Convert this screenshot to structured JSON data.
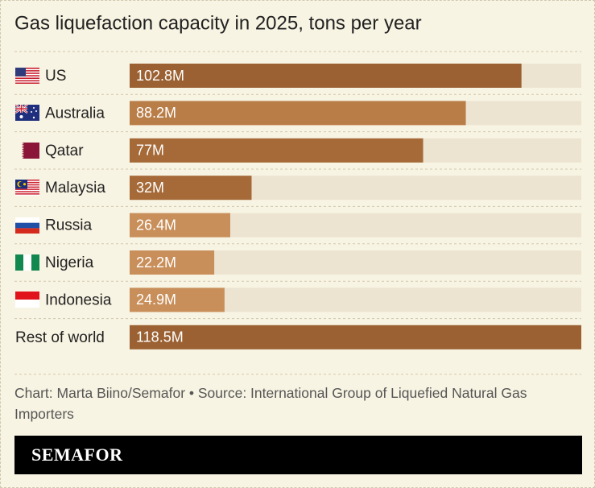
{
  "chart_data": {
    "type": "bar",
    "orientation": "horizontal",
    "title": "Gas liquefaction capacity in 2025, tons per year",
    "categories": [
      "US",
      "Australia",
      "Qatar",
      "Malaysia",
      "Russia",
      "Nigeria",
      "Indonesia",
      "Rest of world"
    ],
    "values": [
      102.8,
      88.2,
      77,
      32,
      26.4,
      22.2,
      24.9,
      118.5
    ],
    "value_labels": [
      "102.8M",
      "88.2M",
      "77M",
      "32M",
      "26.4M",
      "22.2M",
      "24.9M",
      "118.5M"
    ],
    "colors": [
      "#9b6132",
      "#b97d48",
      "#a56a38",
      "#a56a38",
      "#c98f5a",
      "#c98f5a",
      "#c98f5a",
      "#9b6132"
    ],
    "track_color": "#ece4d1",
    "source": "Chart: Marta Biino/Semafor • Source: International Group of Liquefied Natural Gas Importers",
    "logo": "SEMAFOR"
  }
}
